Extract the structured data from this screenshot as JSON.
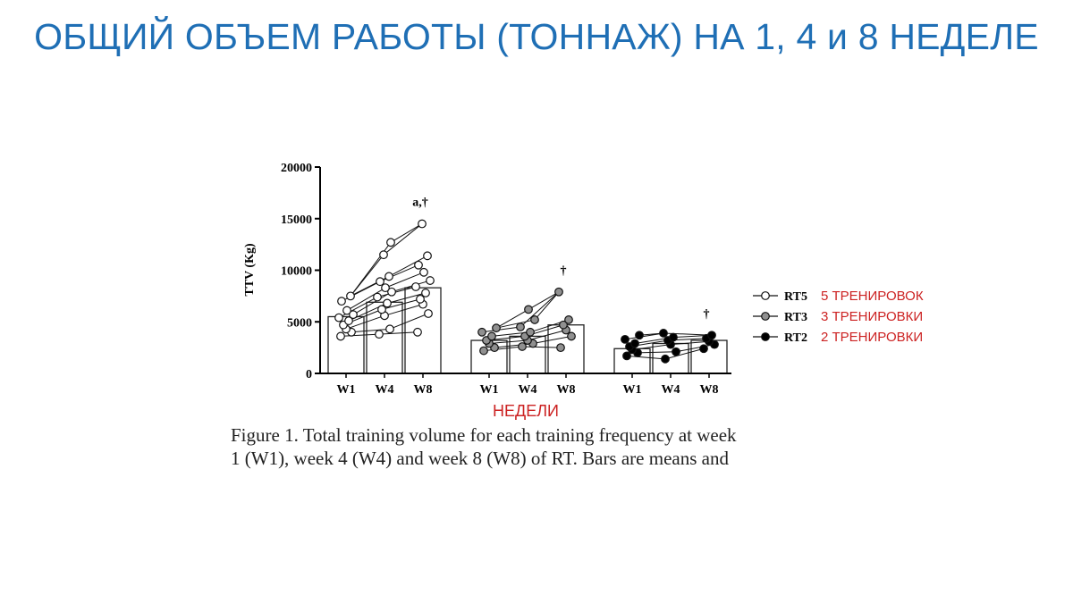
{
  "slide": {
    "title": "ОБЩИЙ ОБЪЕМ РАБОТЫ (ТОННАЖ) НА 1, 4 и 8 НЕДЕЛЕ"
  },
  "caption": {
    "line1": "Figure 1. Total training volume for each training frequency at week",
    "line2": "1 (W1), week 4 (W4) and week 8 (W8) of RT. Bars are means and"
  },
  "annotation_color": "#cc2222",
  "chart_data": {
    "type": "bar",
    "ylabel": "TTV (Kg)",
    "xlabel": "НЕДЕЛИ",
    "ylim": [
      0,
      20000
    ],
    "yticks": [
      0,
      5000,
      10000,
      15000,
      20000
    ],
    "categories": [
      "W1",
      "W4",
      "W8"
    ],
    "legend_position": "right",
    "series": [
      {
        "name": "RT5",
        "note": "5 ТРЕНИРОВОК",
        "marker_fill": "#ffffff",
        "values": [
          5500,
          6900,
          8300
        ],
        "points": {
          "W1": [
            3600,
            4000,
            4300,
            4700,
            5100,
            5400,
            5700,
            6100,
            7000,
            7500
          ],
          "W4": [
            3800,
            4300,
            5600,
            6200,
            6800,
            7400,
            7900,
            8300,
            8900,
            9400,
            11500,
            12700
          ],
          "W8": [
            4000,
            5800,
            6700,
            7200,
            7800,
            8400,
            9000,
            9800,
            10500,
            11400,
            14500
          ]
        },
        "significance": "a,†"
      },
      {
        "name": "RT3",
        "note": "3 ТРЕНИРОВКИ",
        "marker_fill": "#909090",
        "values": [
          3200,
          3600,
          4700
        ],
        "points": {
          "W1": [
            2200,
            2500,
            2900,
            3200,
            3600,
            4000,
            4400
          ],
          "W4": [
            2600,
            2900,
            3200,
            3600,
            4000,
            4500,
            5200,
            6200
          ],
          "W8": [
            2500,
            3600,
            4200,
            4700,
            5200,
            7900
          ]
        },
        "significance": "†"
      },
      {
        "name": "RT2",
        "note": "2 ТРЕНИРОВКИ",
        "marker_fill": "#000000",
        "values": [
          2400,
          2900,
          3200
        ],
        "points": {
          "W1": [
            1700,
            2000,
            2300,
            2600,
            2900,
            3300,
            3700
          ],
          "W4": [
            1400,
            2100,
            2800,
            3200,
            3500,
            3900
          ],
          "W8": [
            2400,
            2800,
            3100,
            3400,
            3700
          ]
        },
        "significance": "†"
      }
    ]
  }
}
